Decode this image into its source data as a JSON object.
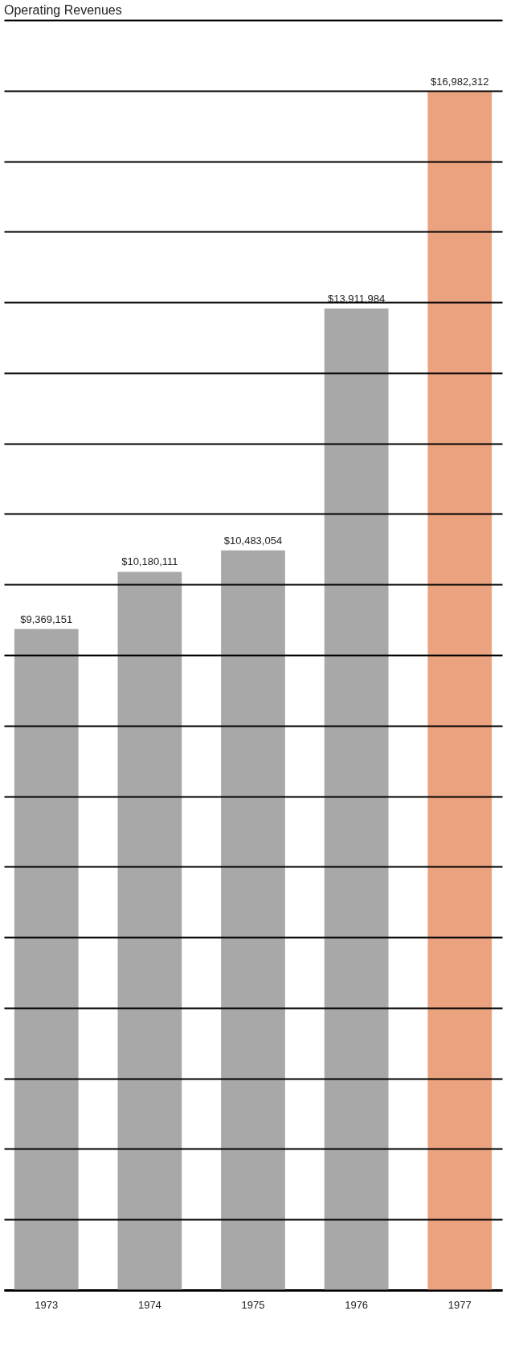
{
  "chart_data": {
    "type": "bar",
    "title": "Operating Revenues",
    "categories": [
      "1973",
      "1974",
      "1975",
      "1976",
      "1977"
    ],
    "values": [
      9369151,
      10180111,
      10483054,
      13911984,
      16982312
    ],
    "colors": [
      "#a8a8a8",
      "#a8a8a8",
      "#a8a8a8",
      "#a8a8a8",
      "#eba27f"
    ],
    "value_labels": [
      "$9,369,151",
      "$10,180,111",
      "$10,483,054",
      "$13,911,984",
      "$16,982,312"
    ],
    "grid": "y",
    "tick_labels": "x"
  }
}
